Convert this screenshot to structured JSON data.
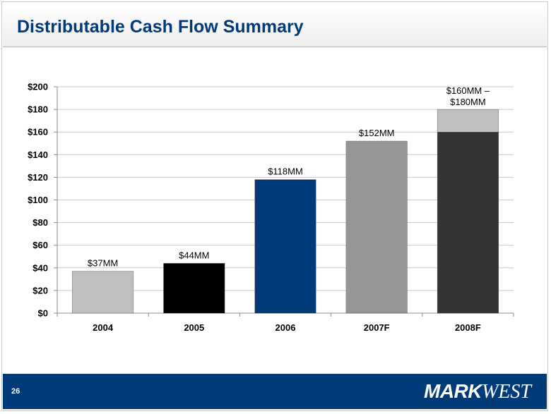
{
  "page": {
    "title": "Distributable Cash Flow Summary",
    "page_number": "26"
  },
  "logo": {
    "part1": "MARK",
    "part2": "WEST"
  },
  "colors": {
    "brand_blue": "#003a78"
  },
  "chart_data": {
    "type": "bar",
    "title": "",
    "xlabel": "",
    "ylabel": "",
    "ylim": [
      0,
      200
    ],
    "ytick_step": 20,
    "y_tick_labels": [
      "$0",
      "$20",
      "$40",
      "$60",
      "$80",
      "$100",
      "$120",
      "$140",
      "$160",
      "$180",
      "$200"
    ],
    "grid": true,
    "categories": [
      "2004",
      "2005",
      "2006",
      "2007F",
      "2008F"
    ],
    "values": [
      37,
      44,
      118,
      152,
      160
    ],
    "range_top": [
      null,
      null,
      null,
      null,
      180
    ],
    "bar_colors": [
      "#bfbfbf",
      "#000000",
      "#003a78",
      "#969696",
      "#333333"
    ],
    "range_color": "#c0c0c0",
    "data_labels": [
      "$37MM",
      "$44MM",
      "$118MM",
      "$152MM",
      "$160MM – $180MM"
    ]
  }
}
